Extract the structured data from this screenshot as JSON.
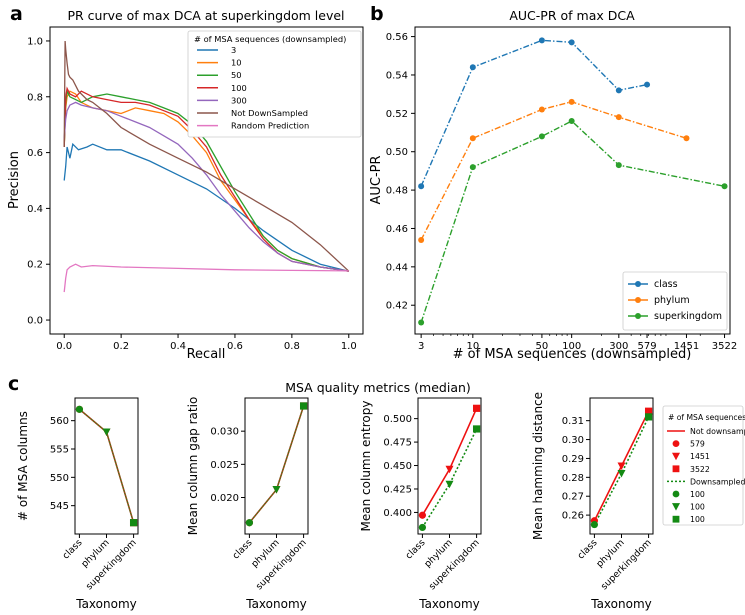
{
  "colors": {
    "blue": "#1f77b4",
    "orange": "#ff7f0e",
    "green": "#2ca02c",
    "red": "#d62728",
    "purple": "#9467bd",
    "brown": "#8c564b",
    "pink": "#e377c2",
    "dark_green": "#138a13",
    "red_marker": "#ee1111",
    "mix_line": "#a0461a"
  },
  "panel_letters": {
    "a": "a",
    "b": "b",
    "c": "c"
  },
  "chart_data": [
    {
      "id": "a",
      "type": "line",
      "title": "PR curve of max DCA at superkingdom level",
      "xlabel": "Recall",
      "ylabel": "Precision",
      "xlim": [
        -0.05,
        1.05
      ],
      "ylim": [
        -0.05,
        1.05
      ],
      "xticks": [
        "0.0",
        "0.2",
        "0.4",
        "0.6",
        "0.8",
        "1.0"
      ],
      "yticks": [
        "0.0",
        "0.2",
        "0.4",
        "0.6",
        "0.8",
        "1.0"
      ],
      "legend_title": "# of MSA sequences (downsampled)",
      "legend_position": "top-right",
      "series": [
        {
          "name": "3",
          "color": "blue",
          "points": [
            [
              0,
              0.5
            ],
            [
              0.005,
              0.55
            ],
            [
              0.01,
              0.62
            ],
            [
              0.02,
              0.58
            ],
            [
              0.03,
              0.63
            ],
            [
              0.05,
              0.61
            ],
            [
              0.08,
              0.62
            ],
            [
              0.1,
              0.63
            ],
            [
              0.15,
              0.61
            ],
            [
              0.2,
              0.61
            ],
            [
              0.3,
              0.57
            ],
            [
              0.4,
              0.52
            ],
            [
              0.5,
              0.47
            ],
            [
              0.6,
              0.4
            ],
            [
              0.7,
              0.32
            ],
            [
              0.8,
              0.25
            ],
            [
              0.9,
              0.2
            ],
            [
              1.0,
              0.175
            ]
          ]
        },
        {
          "name": "10",
          "color": "orange",
          "points": [
            [
              0,
              0.62
            ],
            [
              0.005,
              0.76
            ],
            [
              0.01,
              0.8
            ],
            [
              0.02,
              0.82
            ],
            [
              0.04,
              0.81
            ],
            [
              0.06,
              0.78
            ],
            [
              0.1,
              0.76
            ],
            [
              0.15,
              0.75
            ],
            [
              0.2,
              0.74
            ],
            [
              0.25,
              0.76
            ],
            [
              0.3,
              0.75
            ],
            [
              0.35,
              0.74
            ],
            [
              0.4,
              0.71
            ],
            [
              0.45,
              0.66
            ],
            [
              0.5,
              0.6
            ],
            [
              0.55,
              0.5
            ],
            [
              0.6,
              0.43
            ],
            [
              0.65,
              0.36
            ],
            [
              0.7,
              0.3
            ],
            [
              0.75,
              0.25
            ],
            [
              0.8,
              0.22
            ],
            [
              0.9,
              0.19
            ],
            [
              1.0,
              0.175
            ]
          ]
        },
        {
          "name": "50",
          "color": "green",
          "points": [
            [
              0,
              0.62
            ],
            [
              0.005,
              0.78
            ],
            [
              0.01,
              0.82
            ],
            [
              0.02,
              0.8
            ],
            [
              0.04,
              0.79
            ],
            [
              0.06,
              0.78
            ],
            [
              0.1,
              0.8
            ],
            [
              0.15,
              0.81
            ],
            [
              0.2,
              0.8
            ],
            [
              0.25,
              0.79
            ],
            [
              0.3,
              0.78
            ],
            [
              0.35,
              0.76
            ],
            [
              0.4,
              0.74
            ],
            [
              0.45,
              0.7
            ],
            [
              0.5,
              0.64
            ],
            [
              0.55,
              0.55
            ],
            [
              0.6,
              0.46
            ],
            [
              0.65,
              0.38
            ],
            [
              0.7,
              0.3
            ],
            [
              0.75,
              0.25
            ],
            [
              0.8,
              0.22
            ],
            [
              0.9,
              0.19
            ],
            [
              1.0,
              0.175
            ]
          ]
        },
        {
          "name": "100",
          "color": "red",
          "points": [
            [
              0,
              0.62
            ],
            [
              0.005,
              0.8
            ],
            [
              0.01,
              0.83
            ],
            [
              0.02,
              0.81
            ],
            [
              0.04,
              0.8
            ],
            [
              0.06,
              0.82
            ],
            [
              0.1,
              0.8
            ],
            [
              0.15,
              0.79
            ],
            [
              0.2,
              0.78
            ],
            [
              0.25,
              0.78
            ],
            [
              0.3,
              0.77
            ],
            [
              0.35,
              0.75
            ],
            [
              0.4,
              0.73
            ],
            [
              0.45,
              0.68
            ],
            [
              0.5,
              0.62
            ],
            [
              0.55,
              0.52
            ],
            [
              0.6,
              0.44
            ],
            [
              0.65,
              0.36
            ],
            [
              0.7,
              0.29
            ],
            [
              0.75,
              0.24
            ],
            [
              0.8,
              0.21
            ],
            [
              0.9,
              0.19
            ],
            [
              1.0,
              0.175
            ]
          ]
        },
        {
          "name": "300",
          "color": "purple",
          "points": [
            [
              0,
              0.65
            ],
            [
              0.005,
              0.72
            ],
            [
              0.01,
              0.75
            ],
            [
              0.02,
              0.77
            ],
            [
              0.04,
              0.78
            ],
            [
              0.06,
              0.77
            ],
            [
              0.1,
              0.76
            ],
            [
              0.15,
              0.75
            ],
            [
              0.2,
              0.73
            ],
            [
              0.25,
              0.71
            ],
            [
              0.3,
              0.69
            ],
            [
              0.35,
              0.66
            ],
            [
              0.4,
              0.63
            ],
            [
              0.45,
              0.58
            ],
            [
              0.5,
              0.52
            ],
            [
              0.55,
              0.45
            ],
            [
              0.6,
              0.39
            ],
            [
              0.65,
              0.33
            ],
            [
              0.7,
              0.28
            ],
            [
              0.75,
              0.24
            ],
            [
              0.8,
              0.21
            ],
            [
              0.9,
              0.19
            ],
            [
              1.0,
              0.175
            ]
          ]
        },
        {
          "name": "Not DownSampled",
          "color": "brown",
          "points": [
            [
              0,
              0.62
            ],
            [
              0.003,
              1.0
            ],
            [
              0.005,
              0.97
            ],
            [
              0.01,
              0.92
            ],
            [
              0.015,
              0.88
            ],
            [
              0.02,
              0.87
            ],
            [
              0.03,
              0.86
            ],
            [
              0.05,
              0.82
            ],
            [
              0.08,
              0.79
            ],
            [
              0.1,
              0.78
            ],
            [
              0.15,
              0.74
            ],
            [
              0.2,
              0.69
            ],
            [
              0.3,
              0.63
            ],
            [
              0.4,
              0.58
            ],
            [
              0.5,
              0.53
            ],
            [
              0.6,
              0.47
            ],
            [
              0.7,
              0.41
            ],
            [
              0.8,
              0.35
            ],
            [
              0.9,
              0.27
            ],
            [
              1.0,
              0.175
            ]
          ]
        },
        {
          "name": "Random Prediction",
          "color": "pink",
          "points": [
            [
              0,
              0.1
            ],
            [
              0.005,
              0.15
            ],
            [
              0.01,
              0.18
            ],
            [
              0.02,
              0.19
            ],
            [
              0.04,
              0.2
            ],
            [
              0.06,
              0.19
            ],
            [
              0.1,
              0.195
            ],
            [
              0.2,
              0.19
            ],
            [
              0.4,
              0.185
            ],
            [
              0.6,
              0.18
            ],
            [
              0.8,
              0.178
            ],
            [
              1.0,
              0.176
            ]
          ]
        }
      ]
    },
    {
      "id": "b",
      "type": "line",
      "title": "AUC-PR of max DCA",
      "xlabel": "# of MSA sequences (downsampled)",
      "ylabel": "AUC-PR",
      "xscale": "log",
      "xlim": [
        2.6,
        4000
      ],
      "ylim": [
        0.405,
        0.565
      ],
      "xticks": [
        "3",
        "10",
        "50",
        "100",
        "300",
        "579",
        "1451",
        "3522"
      ],
      "xtick_values": [
        3,
        10,
        50,
        100,
        300,
        579,
        1451,
        3522
      ],
      "yticks": [
        "0.42",
        "0.44",
        "0.46",
        "0.48",
        "0.50",
        "0.52",
        "0.54",
        "0.56"
      ],
      "ytick_values": [
        0.42,
        0.44,
        0.46,
        0.48,
        0.5,
        0.52,
        0.54,
        0.56
      ],
      "legend_position": "bottom-right",
      "series": [
        {
          "name": "class",
          "color": "blue",
          "x": [
            3,
            10,
            50,
            100,
            300,
            579
          ],
          "values": [
            0.482,
            0.544,
            0.558,
            0.557,
            0.532,
            0.535
          ]
        },
        {
          "name": "phylum",
          "color": "orange",
          "x": [
            3,
            10,
            50,
            100,
            300,
            1451
          ],
          "values": [
            0.454,
            0.507,
            0.522,
            0.526,
            0.518,
            0.507
          ]
        },
        {
          "name": "superkingdom",
          "color": "green",
          "x": [
            3,
            10,
            50,
            100,
            300,
            3522
          ],
          "values": [
            0.411,
            0.492,
            0.508,
            0.516,
            0.493,
            0.482
          ]
        }
      ]
    },
    {
      "id": "c",
      "type": "line",
      "title": "MSA quality metrics (median)",
      "categories": [
        "class",
        "phylum",
        "superkingdom"
      ],
      "xlabel": "Taxonomy",
      "legend_title": "# of MSA sequences",
      "legend_entries": [
        {
          "label": "Not downsampled",
          "kind": "line-solid"
        },
        {
          "label": "579",
          "kind": "circle"
        },
        {
          "label": "1451",
          "kind": "triangle"
        },
        {
          "label": "3522",
          "kind": "square"
        },
        {
          "label": "Downsampled",
          "kind": "line-dotted"
        },
        {
          "label": "100",
          "kind": "circle"
        },
        {
          "label": "100",
          "kind": "triangle"
        },
        {
          "label": "100",
          "kind": "square"
        }
      ],
      "subplots": [
        {
          "ylabel": "# of MSA columns",
          "ylim": [
            540,
            564
          ],
          "yticks": [
            "545",
            "550",
            "555",
            "560"
          ],
          "ytick_values": [
            545,
            550,
            555,
            560
          ],
          "not_downsampled": [
            562,
            558,
            542
          ],
          "downsampled": [
            562,
            558,
            542
          ]
        },
        {
          "ylabel": "Mean column gap ratio",
          "ylim": [
            0.0145,
            0.035
          ],
          "yticks": [
            "0.020",
            "0.025",
            "0.030"
          ],
          "ytick_values": [
            0.02,
            0.025,
            0.03
          ],
          "not_downsampled": [
            0.0162,
            0.0212,
            0.0338
          ],
          "downsampled": [
            0.0162,
            0.0212,
            0.0338
          ]
        },
        {
          "ylabel": "Mean column entropy",
          "ylim": [
            0.377,
            0.522
          ],
          "yticks": [
            "0.400",
            "0.425",
            "0.450",
            "0.475",
            "0.500"
          ],
          "ytick_values": [
            0.4,
            0.425,
            0.45,
            0.475,
            0.5
          ],
          "not_downsampled": [
            0.397,
            0.446,
            0.511
          ],
          "downsampled": [
            0.384,
            0.43,
            0.489
          ]
        },
        {
          "ylabel": "Mean hamming distance",
          "ylim": [
            0.25,
            0.322
          ],
          "yticks": [
            "0.26",
            "0.27",
            "0.28",
            "0.29",
            "0.30",
            "0.31"
          ],
          "ytick_values": [
            0.26,
            0.27,
            0.28,
            0.29,
            0.3,
            0.31
          ],
          "not_downsampled": [
            0.257,
            0.286,
            0.315
          ],
          "downsampled": [
            0.255,
            0.282,
            0.312
          ]
        }
      ]
    }
  ]
}
